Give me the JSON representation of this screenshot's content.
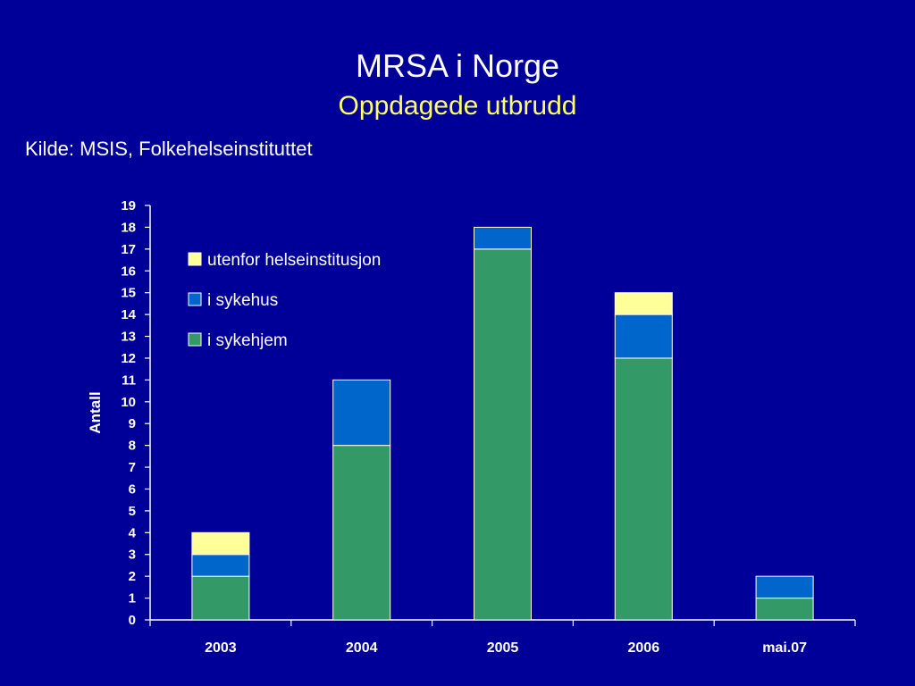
{
  "slide": {
    "title": "MRSA i Norge",
    "subtitle": "Oppdagede utbrudd",
    "source": "Kilde: MSIS, Folkehelseinstituttet"
  },
  "chart_data": {
    "type": "bar",
    "stacked": true,
    "categories": [
      "2003",
      "2004",
      "2005",
      "2006",
      "mai.07"
    ],
    "series": [
      {
        "name": "i sykehjem",
        "values": [
          2,
          8,
          17,
          12,
          1
        ],
        "color": "#339966"
      },
      {
        "name": "i sykehus",
        "values": [
          1,
          3,
          1,
          2,
          1
        ],
        "color": "#0066cc"
      },
      {
        "name": "utenfor helseinstitusjon",
        "values": [
          1,
          0,
          0,
          1,
          0
        ],
        "color": "#ffff99"
      }
    ],
    "legend_order": [
      "utenfor helseinstitusjon",
      "i sykehus",
      "i sykehjem"
    ],
    "ylabel": "Antall",
    "xlabel": "",
    "ylim": [
      0,
      19
    ],
    "yticks": [
      0,
      1,
      2,
      3,
      4,
      5,
      6,
      7,
      8,
      9,
      10,
      11,
      12,
      13,
      14,
      15,
      16,
      17,
      18,
      19
    ],
    "grid": false,
    "legend_position": "top-left"
  }
}
